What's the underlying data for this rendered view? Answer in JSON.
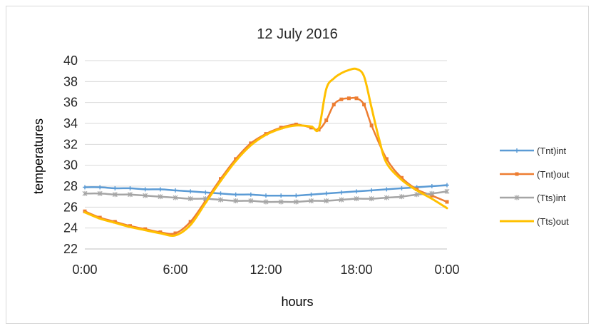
{
  "chart_data": {
    "type": "line",
    "title": "12 July 2016",
    "xlabel": "hours",
    "ylabel": "temperatures",
    "xlim": [
      0,
      24
    ],
    "ylim": [
      22,
      40
    ],
    "yticks": [
      22,
      24,
      26,
      28,
      30,
      32,
      34,
      36,
      38,
      40
    ],
    "xticks": [
      {
        "value": 0,
        "label": "0:00"
      },
      {
        "value": 6,
        "label": "6:00"
      },
      {
        "value": 12,
        "label": "12:00"
      },
      {
        "value": 18,
        "label": "18:00"
      },
      {
        "value": 24,
        "label": "0:00"
      }
    ],
    "grid": true,
    "legend_position": "right",
    "series": [
      {
        "name": "(Tnt)int",
        "color": "#5b9bd5",
        "marker": "plus",
        "x": [
          0,
          1,
          2,
          3,
          4,
          5,
          6,
          7,
          8,
          9,
          10,
          11,
          12,
          13,
          14,
          15,
          16,
          17,
          18,
          19,
          20,
          21,
          22,
          23,
          24
        ],
        "y": [
          27.9,
          27.9,
          27.8,
          27.8,
          27.7,
          27.7,
          27.6,
          27.5,
          27.4,
          27.3,
          27.2,
          27.2,
          27.1,
          27.1,
          27.1,
          27.2,
          27.3,
          27.4,
          27.5,
          27.6,
          27.7,
          27.8,
          27.9,
          28.0,
          28.1
        ]
      },
      {
        "name": "(Tnt)out",
        "color": "#ed7d31",
        "marker": "square",
        "x": [
          0,
          1,
          2,
          3,
          4,
          5,
          6,
          7,
          8,
          9,
          10,
          11,
          12,
          13,
          14,
          15,
          15.5,
          16,
          16.5,
          17,
          17.5,
          18,
          18.5,
          19,
          20,
          21,
          22,
          23,
          24
        ],
        "y": [
          25.6,
          25.0,
          24.6,
          24.2,
          23.9,
          23.6,
          23.5,
          24.6,
          26.6,
          28.7,
          30.6,
          32.1,
          33.0,
          33.6,
          33.9,
          33.6,
          33.4,
          34.3,
          35.8,
          36.3,
          36.4,
          36.4,
          35.8,
          33.8,
          30.6,
          28.8,
          27.7,
          27.1,
          26.5
        ]
      },
      {
        "name": "(Tts)int",
        "color": "#a5a5a5",
        "marker": "star",
        "x": [
          0,
          1,
          2,
          3,
          4,
          5,
          6,
          7,
          8,
          9,
          10,
          11,
          12,
          13,
          14,
          15,
          16,
          17,
          18,
          19,
          20,
          21,
          22,
          23,
          24
        ],
        "y": [
          27.3,
          27.3,
          27.2,
          27.2,
          27.1,
          27.0,
          26.9,
          26.8,
          26.8,
          26.7,
          26.6,
          26.6,
          26.5,
          26.5,
          26.5,
          26.6,
          26.6,
          26.7,
          26.8,
          26.8,
          26.9,
          27.0,
          27.2,
          27.3,
          27.5
        ]
      },
      {
        "name": "(Tts)out",
        "color": "#ffc000",
        "marker": "none",
        "x": [
          0,
          1,
          2,
          3,
          4,
          5,
          6,
          7,
          8,
          9,
          10,
          11,
          12,
          13,
          14,
          15,
          15.5,
          16,
          16.5,
          17,
          17.5,
          18,
          18.5,
          19,
          19.5,
          20,
          21,
          22,
          23,
          24
        ],
        "y": [
          25.5,
          24.9,
          24.5,
          24.1,
          23.8,
          23.5,
          23.3,
          24.3,
          26.4,
          28.5,
          30.4,
          31.9,
          32.9,
          33.5,
          33.8,
          33.7,
          33.5,
          37.3,
          38.3,
          38.8,
          39.1,
          39.2,
          38.5,
          35.5,
          32.5,
          30.2,
          28.6,
          27.6,
          26.8,
          25.9
        ]
      }
    ]
  }
}
